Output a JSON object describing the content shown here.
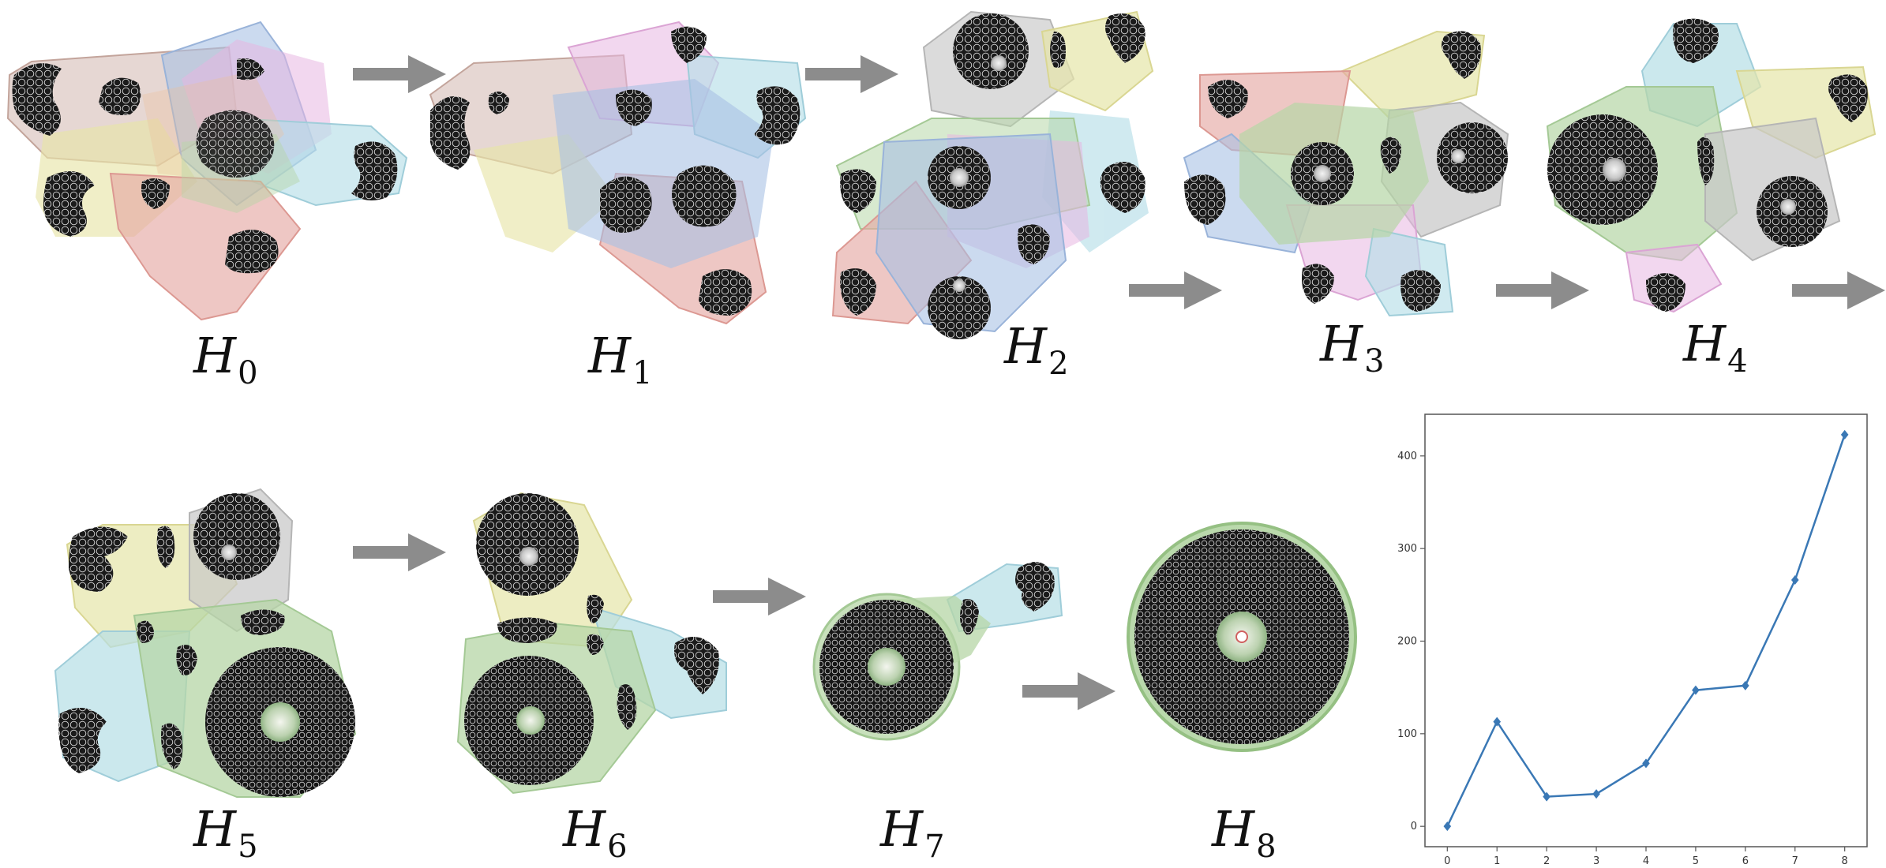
{
  "panels": [
    {
      "label": "H",
      "sub": "0"
    },
    {
      "label": "H",
      "sub": "1"
    },
    {
      "label": "H",
      "sub": "2"
    },
    {
      "label": "H",
      "sub": "3"
    },
    {
      "label": "H",
      "sub": "4"
    },
    {
      "label": "H",
      "sub": "5"
    },
    {
      "label": "H",
      "sub": "6"
    },
    {
      "label": "H",
      "sub": "7"
    },
    {
      "label": "H",
      "sub": "8"
    }
  ],
  "colors": {
    "blob": "#1a1a1a",
    "blob_dot": "#e8e8e8",
    "arrow": "#8c8c8c",
    "hull_palette": [
      "#a9d8e3",
      "#e3e19a",
      "#c9a9a0",
      "#e19a94",
      "#9ab6e0",
      "#e2a9dc",
      "#a9cf97",
      "#bdbdbd"
    ],
    "line": "#3a78b5"
  },
  "chart_data": {
    "type": "line",
    "title": "",
    "xlabel": "",
    "ylabel": "",
    "x": [
      0,
      1,
      2,
      3,
      4,
      5,
      6,
      7,
      8
    ],
    "series": [
      {
        "values": [
          0,
          113,
          32,
          35,
          68,
          147,
          152,
          266,
          423
        ]
      }
    ],
    "xticks": [
      "0",
      "1",
      "2",
      "3",
      "4",
      "5",
      "6",
      "7",
      "8"
    ],
    "yticks": [
      "0",
      "100",
      "200",
      "300",
      "400"
    ],
    "xlim": [
      -0.45,
      8.45
    ],
    "ylim": [
      -22,
      445
    ],
    "marker": "diamond",
    "grid": false
  }
}
